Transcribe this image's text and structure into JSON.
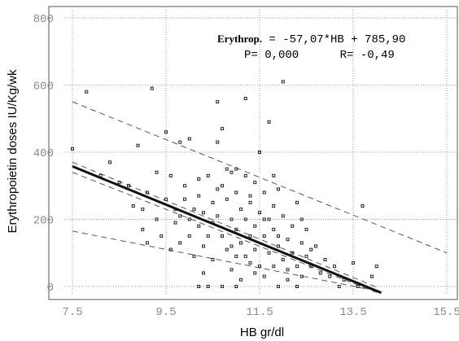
{
  "chart_data": {
    "type": "scatter",
    "xlabel": "HB gr/dl",
    "ylabel": "Erythropoietin doses IU/Kg/wk",
    "xlim": [
      7.5,
      15.5
    ],
    "ylim": [
      0,
      800
    ],
    "x_ticks": [
      "7.5",
      "9.5",
      "11.5",
      "13.5",
      "15.5"
    ],
    "y_ticks": [
      "0",
      "200",
      "400",
      "600",
      "800"
    ],
    "grid": true,
    "annotation": {
      "equation_name": "Erythrop.",
      "equation_rest": " = -57,07*HB + 785,90",
      "stats": "P= 0,000      R= -0,49"
    },
    "regression": {
      "slope": -57.07,
      "intercept": 785.9,
      "x_range": [
        7.5,
        14.1
      ]
    },
    "bands": [
      {
        "name": "upper-prediction",
        "x": [
          7.5,
          15.5
        ],
        "y": [
          550,
          100
        ]
      },
      {
        "name": "lower-prediction",
        "x": [
          7.5,
          13.9
        ],
        "y": [
          165,
          -10
        ]
      },
      {
        "name": "upper-confidence",
        "x": [
          7.5,
          14.0
        ],
        "y": [
          370,
          -2
        ]
      },
      {
        "name": "lower-confidence",
        "x": [
          7.5,
          14.0
        ],
        "y": [
          340,
          -18
        ]
      }
    ],
    "points": [
      [
        7.5,
        410
      ],
      [
        7.8,
        580
      ],
      [
        8.1,
        330
      ],
      [
        8.3,
        370
      ],
      [
        8.5,
        310
      ],
      [
        8.7,
        300
      ],
      [
        8.8,
        240
      ],
      [
        8.9,
        420
      ],
      [
        9.0,
        170
      ],
      [
        9.0,
        230
      ],
      [
        9.1,
        130
      ],
      [
        9.1,
        280
      ],
      [
        9.2,
        590
      ],
      [
        9.3,
        340
      ],
      [
        9.3,
        200
      ],
      [
        9.4,
        150
      ],
      [
        9.5,
        260
      ],
      [
        9.5,
        460
      ],
      [
        9.6,
        110
      ],
      [
        9.6,
        330
      ],
      [
        9.7,
        230
      ],
      [
        9.7,
        190
      ],
      [
        9.8,
        430
      ],
      [
        9.8,
        130
      ],
      [
        9.9,
        260
      ],
      [
        9.9,
        300
      ],
      [
        10.0,
        440
      ],
      [
        10.0,
        200
      ],
      [
        10.0,
        150
      ],
      [
        10.1,
        90
      ],
      [
        10.1,
        230
      ],
      [
        10.2,
        270
      ],
      [
        10.2,
        180
      ],
      [
        10.3,
        40
      ],
      [
        10.3,
        120
      ],
      [
        10.3,
        220
      ],
      [
        10.4,
        330
      ],
      [
        10.4,
        150
      ],
      [
        10.5,
        250
      ],
      [
        10.5,
        190
      ],
      [
        10.5,
        80
      ],
      [
        10.6,
        550
      ],
      [
        10.6,
        430
      ],
      [
        10.6,
        210
      ],
      [
        10.7,
        150
      ],
      [
        10.7,
        300
      ],
      [
        10.7,
        470
      ],
      [
        10.8,
        350
      ],
      [
        10.8,
        260
      ],
      [
        10.8,
        110
      ],
      [
        10.9,
        340
      ],
      [
        10.9,
        200
      ],
      [
        10.9,
        50
      ],
      [
        11.0,
        280
      ],
      [
        11.0,
        170
      ],
      [
        11.0,
        90
      ],
      [
        11.1,
        230
      ],
      [
        11.1,
        130
      ],
      [
        11.1,
        20
      ],
      [
        11.2,
        560
      ],
      [
        11.2,
        330
      ],
      [
        11.2,
        200
      ],
      [
        11.3,
        150
      ],
      [
        11.3,
        70
      ],
      [
        11.3,
        250
      ],
      [
        11.4,
        110
      ],
      [
        11.4,
        310
      ],
      [
        11.4,
        180
      ],
      [
        11.5,
        400
      ],
      [
        11.5,
        220
      ],
      [
        11.5,
        60
      ],
      [
        11.6,
        150
      ],
      [
        11.6,
        280
      ],
      [
        11.6,
        30
      ],
      [
        11.7,
        490
      ],
      [
        11.7,
        200
      ],
      [
        11.7,
        100
      ],
      [
        11.8,
        170
      ],
      [
        11.8,
        240
      ],
      [
        11.8,
        60
      ],
      [
        11.9,
        120
      ],
      [
        11.9,
        290
      ],
      [
        12.0,
        610
      ],
      [
        12.0,
        210
      ],
      [
        12.0,
        80
      ],
      [
        12.1,
        140
      ],
      [
        12.1,
        20
      ],
      [
        12.2,
        180
      ],
      [
        12.2,
        100
      ],
      [
        12.3,
        250
      ],
      [
        12.3,
        60
      ],
      [
        12.4,
        130
      ],
      [
        12.4,
        30
      ],
      [
        12.5,
        90
      ],
      [
        12.5,
        170
      ],
      [
        12.6,
        60
      ],
      [
        12.7,
        120
      ],
      [
        12.8,
        40
      ],
      [
        12.9,
        80
      ],
      [
        13.0,
        30
      ],
      [
        13.1,
        60
      ],
      [
        13.3,
        20
      ],
      [
        13.5,
        70
      ],
      [
        13.7,
        240
      ],
      [
        13.9,
        30
      ],
      [
        14.0,
        60
      ],
      [
        10.2,
        0
      ],
      [
        10.4,
        0
      ],
      [
        10.7,
        0
      ],
      [
        11.0,
        0
      ],
      [
        11.9,
        0
      ],
      [
        12.3,
        0
      ],
      [
        13.2,
        0
      ],
      [
        13.6,
        0
      ],
      [
        10.9,
        120
      ],
      [
        11.2,
        90
      ],
      [
        11.6,
        200
      ],
      [
        12.1,
        50
      ],
      [
        12.6,
        110
      ],
      [
        11.4,
        40
      ],
      [
        11.0,
        350
      ],
      [
        10.6,
        290
      ],
      [
        11.8,
        330
      ],
      [
        12.4,
        200
      ],
      [
        9.8,
        210
      ],
      [
        10.2,
        320
      ],
      [
        11.3,
        270
      ],
      [
        11.9,
        150
      ]
    ]
  }
}
